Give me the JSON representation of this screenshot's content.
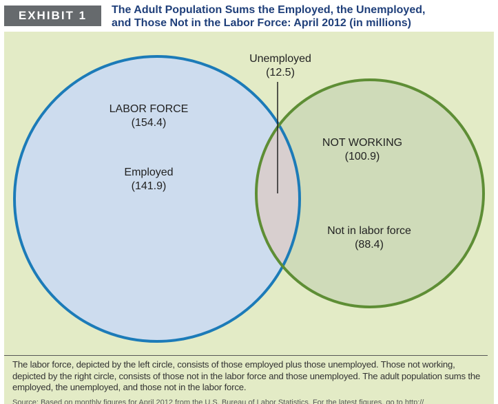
{
  "header": {
    "exhibit_label": "EXHIBIT 1",
    "title_line1": "The Adult Population Sums the Employed, the Unemployed,",
    "title_line2": "and Those Not in the Labor Force: April 2012 (in millions)"
  },
  "diagram": {
    "labor_force": {
      "label": "LABOR FORCE",
      "value": "(154.4)"
    },
    "employed": {
      "label": "Employed",
      "value": "(141.9)"
    },
    "unemployed": {
      "label": "Unemployed",
      "value": "(12.5)"
    },
    "not_working": {
      "label": "NOT WORKING",
      "value": "(100.9)"
    },
    "not_in_labor_force": {
      "label": "Not in labor force",
      "value": "(88.4)"
    }
  },
  "colors": {
    "panel": "#e3ebc6",
    "left_circle_fill": "#cddcee",
    "left_circle_stroke": "#1c7bb8",
    "right_circle_fill": "#cfdbb9",
    "right_circle_stroke": "#5e8e35",
    "overlap_fill": "#d8cfcf",
    "title": "#1f3f7a",
    "badge": "#666a6d"
  },
  "caption": {
    "text": "The labor force, depicted by the left circle, consists of those employed plus those unemployed. Those not working, depicted by the right circle, consists of those not in the labor force and those unemployed. The adult population sums the employed, the unemployed, and those not in the labor force.",
    "source": "Source: Based on monthly figures for April 2012 from the U.S. Bureau of Labor Statistics. For the latest figures, go to http://"
  }
}
